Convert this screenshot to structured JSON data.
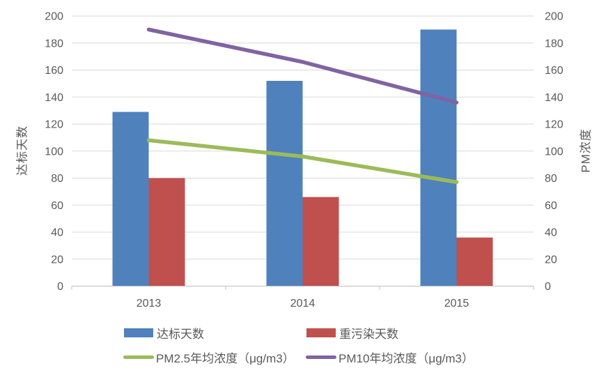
{
  "chart_data": {
    "type": "combo",
    "categories": [
      "2013",
      "2014",
      "2015"
    ],
    "series": [
      {
        "id": "standard-days",
        "name": "达标天数",
        "type": "bar",
        "axis": "left",
        "color": "#4F81BD",
        "values": [
          129,
          152,
          190
        ]
      },
      {
        "id": "heavy-pollution-days",
        "name": "重污染天数",
        "type": "bar",
        "axis": "left",
        "color": "#C0504D",
        "values": [
          80,
          66,
          36
        ]
      },
      {
        "id": "pm25-annual",
        "name": "PM2.5年均浓度（μg/m3）",
        "type": "line",
        "axis": "right",
        "color": "#9BBB59",
        "values": [
          108,
          96,
          77
        ]
      },
      {
        "id": "pm10-annual",
        "name": "PM10年均浓度（μg/m3）",
        "type": "line",
        "axis": "right",
        "color": "#8064A2",
        "values": [
          190,
          166,
          136
        ]
      }
    ],
    "ylabel_left": "达标天数",
    "ylabel_right": "PM浓度",
    "ylim_left": [
      0,
      200
    ],
    "ylim_right": [
      0,
      200
    ],
    "y_ticks": [
      0,
      20,
      40,
      60,
      80,
      100,
      120,
      140,
      160,
      180,
      200
    ],
    "grid": true,
    "legend_position": "bottom"
  },
  "styles": {
    "background": "#FFFFFF",
    "grid_color": "#D9D9D9",
    "axis_line_color": "#BFBFBF",
    "tick_text_color": "#595959"
  }
}
